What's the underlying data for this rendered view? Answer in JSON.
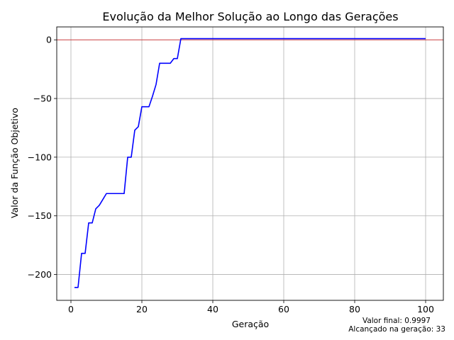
{
  "chart_data": {
    "type": "line",
    "title": "Evolução da Melhor Solução ao Longo das Gerações",
    "xlabel": "Geração",
    "ylabel": "Valor da Função Objetivo",
    "xlim": [
      -4,
      105
    ],
    "ylim": [
      -222,
      11
    ],
    "xticks": [
      0,
      20,
      40,
      60,
      80,
      100
    ],
    "yticks": [
      0,
      -50,
      -100,
      -150,
      -200
    ],
    "xtick_labels": [
      "0",
      "20",
      "40",
      "60",
      "80",
      "100"
    ],
    "ytick_labels": [
      "0",
      "−50",
      "−100",
      "−150",
      "−200"
    ],
    "grid": true,
    "reference_line": {
      "y": 0,
      "color": "#d62728"
    },
    "series": [
      {
        "color": "#0000ff",
        "x": [
          1,
          2,
          3,
          4,
          5,
          6,
          7,
          8,
          9,
          10,
          11,
          12,
          13,
          14,
          15,
          16,
          17,
          18,
          19,
          20,
          21,
          22,
          23,
          24,
          25,
          26,
          27,
          28,
          29,
          30,
          31,
          32,
          33,
          34,
          35,
          36,
          37,
          38,
          39,
          40,
          41,
          42,
          43,
          44,
          45,
          46,
          47,
          48,
          49,
          50,
          51,
          52,
          53,
          54,
          55,
          56,
          57,
          58,
          59,
          60,
          61,
          62,
          63,
          64,
          65,
          66,
          67,
          68,
          69,
          70,
          71,
          72,
          73,
          74,
          75,
          76,
          77,
          78,
          79,
          80,
          81,
          82,
          83,
          84,
          85,
          86,
          87,
          88,
          89,
          90,
          91,
          92,
          93,
          94,
          95,
          96,
          97,
          98,
          99,
          100
        ],
        "y": [
          -211,
          -211,
          -182,
          -182,
          -156,
          -156,
          -144,
          -141,
          -136,
          -131,
          -131,
          -131,
          -131,
          -131,
          -131,
          -100,
          -100,
          -77,
          -74,
          -57,
          -57,
          -57,
          -48,
          -38,
          -20,
          -20,
          -20,
          -20,
          -16,
          -16,
          1,
          1,
          1,
          1,
          1,
          1,
          1,
          1,
          1,
          1,
          1,
          1,
          1,
          1,
          1,
          1,
          1,
          1,
          1,
          1,
          1,
          1,
          1,
          1,
          1,
          1,
          1,
          1,
          1,
          1,
          1,
          1,
          1,
          1,
          1,
          1,
          1,
          1,
          1,
          1,
          1,
          1,
          1,
          1,
          1,
          1,
          1,
          1,
          1,
          1,
          1,
          1,
          1,
          1,
          1,
          1,
          1,
          1,
          1,
          1,
          1,
          1,
          1,
          1,
          1,
          1,
          1,
          1,
          1,
          1
        ]
      }
    ],
    "annotations": [
      "Valor final: 0.9997",
      "Alcançado na geração: 33"
    ]
  }
}
